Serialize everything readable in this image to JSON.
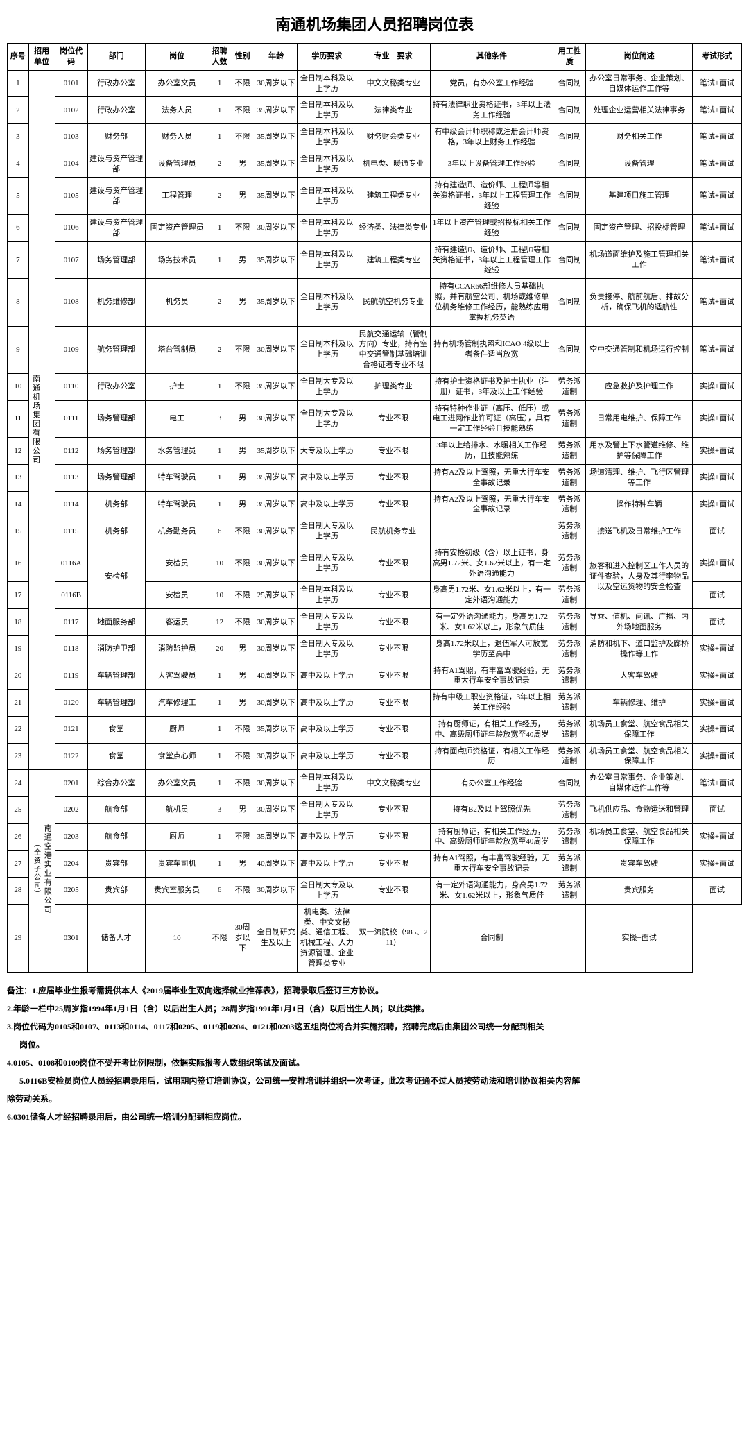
{
  "title": "南通机场集团人员招聘岗位表",
  "headers": {
    "seq": "序号",
    "unit": "招用单位",
    "code": "岗位代码",
    "dept": "部门",
    "pos": "岗位",
    "num": "招聘人数",
    "sex": "性别",
    "age": "年龄",
    "edu": "学历要求",
    "major": "专业　要求",
    "other": "其他条件",
    "emp": "用工性质",
    "desc": "岗位简述",
    "exam": "考试形式"
  },
  "units": [
    {
      "label": "南通机场集团有限公司",
      "paren": ""
    },
    {
      "label": "南通空港实业有限公司",
      "paren": "（全资子公司）"
    }
  ],
  "rows": [
    {
      "u": 0,
      "seq": "1",
      "code": "0101",
      "dept": "行政办公室",
      "pos": "办公室文员",
      "num": "1",
      "sex": "不限",
      "age": "30周岁以下",
      "edu": "全日制本科及以上学历",
      "major": "中文文秘类专业",
      "other": "党员，有办公室工作经验",
      "emp": "合同制",
      "desc": "办公室日常事务、企业策划、自媒体运作工作等",
      "exam": "笔试+面试"
    },
    {
      "u": 0,
      "seq": "2",
      "code": "0102",
      "dept": "行政办公室",
      "pos": "法务人员",
      "num": "1",
      "sex": "不限",
      "age": "35周岁以下",
      "edu": "全日制本科及以上学历",
      "major": "法律类专业",
      "other": "持有法律职业资格证书，3年以上法务工作经验",
      "emp": "合同制",
      "desc": "处理企业运营相关法律事务",
      "exam": "笔试+面试"
    },
    {
      "u": 0,
      "seq": "3",
      "code": "0103",
      "dept": "财务部",
      "pos": "财务人员",
      "num": "1",
      "sex": "不限",
      "age": "35周岁以下",
      "edu": "全日制本科及以上学历",
      "major": "财务财会类专业",
      "other": "有中级会计师职称或注册会计师资格，3年以上财务工作经验",
      "emp": "合同制",
      "desc": "财务相关工作",
      "exam": "笔试+面试"
    },
    {
      "u": 0,
      "seq": "4",
      "code": "0104",
      "dept": "建设与资产管理部",
      "pos": "设备管理员",
      "num": "2",
      "sex": "男",
      "age": "35周岁以下",
      "edu": "全日制本科及以上学历",
      "major": "机电类、暖通专业",
      "other": "3年以上设备管理工作经验",
      "emp": "合同制",
      "desc": "设备管理",
      "exam": "笔试+面试"
    },
    {
      "u": 0,
      "seq": "5",
      "code": "0105",
      "dept": "建设与资产管理部",
      "pos": "工程管理",
      "num": "2",
      "sex": "男",
      "age": "35周岁以下",
      "edu": "全日制本科及以上学历",
      "major": "建筑工程类专业",
      "other": "持有建造师、造价师、工程师等相关资格证书，3年以上工程管理工作经验",
      "emp": "合同制",
      "desc": "基建项目施工管理",
      "exam": "笔试+面试"
    },
    {
      "u": 0,
      "seq": "6",
      "code": "0106",
      "dept": "建设与资产管理部",
      "pos": "固定资产管理员",
      "num": "1",
      "sex": "不限",
      "age": "30周岁以下",
      "edu": "全日制本科及以上学历",
      "major": "经济类、法律类专业",
      "other": "1年以上资产管理或招投标相关工作经验",
      "emp": "合同制",
      "desc": "固定资产管理、招投标管理",
      "exam": "笔试+面试"
    },
    {
      "u": 0,
      "seq": "7",
      "code": "0107",
      "dept": "场务管理部",
      "pos": "场务技术员",
      "num": "1",
      "sex": "男",
      "age": "35周岁以下",
      "edu": "全日制本科及以上学历",
      "major": "建筑工程类专业",
      "other": "持有建造师、造价师、工程师等相关资格证书，3年以上工程管理工作经验",
      "emp": "合同制",
      "desc": "机场道面维护及施工管理相关工作",
      "exam": "笔试+面试"
    },
    {
      "u": 0,
      "seq": "8",
      "code": "0108",
      "dept": "机务维修部",
      "pos": "机务员",
      "num": "2",
      "sex": "男",
      "age": "35周岁以下",
      "edu": "全日制本科及以上学历",
      "major": "民航航空机务专业",
      "other": "持有CCAR66部维修人员基础执照，并有航空公司、机场或维修单位机务维修工作经历，能熟练应用掌握机务英语",
      "emp": "合同制",
      "desc": "负责接停、航前航后、排故分析，确保飞机的适航性",
      "exam": "笔试+面试"
    },
    {
      "u": 0,
      "seq": "9",
      "code": "0109",
      "dept": "航务管理部",
      "pos": "塔台管制员",
      "num": "2",
      "sex": "不限",
      "age": "30周岁以下",
      "edu": "全日制本科及以上学历",
      "major": "民航交通运输（管制方向）专业，持有空中交通管制基础培训合格证者专业不限",
      "other": "持有机场管制执照和ICAO 4级以上者条件适当放宽",
      "emp": "合同制",
      "desc": "空中交通管制和机场运行控制",
      "exam": "笔试+面试"
    },
    {
      "u": 0,
      "seq": "10",
      "code": "0110",
      "dept": "行政办公室",
      "pos": "护士",
      "num": "1",
      "sex": "不限",
      "age": "35周岁以下",
      "edu": "全日制大专及以上学历",
      "major": "护理类专业",
      "other": "持有护士资格证书及护士执业（注册）证书，3年及以上工作经验",
      "emp": "劳务派遣制",
      "desc": "应急救护及护理工作",
      "exam": "实操+面试"
    },
    {
      "u": 0,
      "seq": "11",
      "code": "0111",
      "dept": "场务管理部",
      "pos": "电工",
      "num": "3",
      "sex": "男",
      "age": "30周岁以下",
      "edu": "全日制大专及以上学历",
      "major": "专业不限",
      "other": "持有特种作业证（高压、低压）或电工进网作业许可证（高压），具有一定工作经验且技能熟练",
      "emp": "劳务派遣制",
      "desc": "日常用电维护、保障工作",
      "exam": "实操+面试"
    },
    {
      "u": 0,
      "seq": "12",
      "code": "0112",
      "dept": "场务管理部",
      "pos": "水务管理员",
      "num": "1",
      "sex": "男",
      "age": "35周岁以下",
      "edu": "大专及以上学历",
      "major": "专业不限",
      "other": "3年以上给排水、水暖相关工作经历，且技能熟练",
      "emp": "劳务派遣制",
      "desc": "用水及管上下水管道维修、维护等保障工作",
      "exam": "实操+面试"
    },
    {
      "u": 0,
      "seq": "13",
      "code": "0113",
      "dept": "场务管理部",
      "pos": "特车驾驶员",
      "num": "1",
      "sex": "男",
      "age": "35周岁以下",
      "edu": "高中及以上学历",
      "major": "专业不限",
      "other": "持有A2及以上驾照，无重大行车安全事故记录",
      "emp": "劳务派遣制",
      "desc": "场道清理、维护、飞行区管理等工作",
      "exam": "实操+面试"
    },
    {
      "u": 0,
      "seq": "14",
      "code": "0114",
      "dept": "机务部",
      "pos": "特车驾驶员",
      "num": "1",
      "sex": "男",
      "age": "35周岁以下",
      "edu": "高中及以上学历",
      "major": "专业不限",
      "other": "持有A2及以上驾照，无重大行车安全事故记录",
      "emp": "劳务派遣制",
      "desc": "操作特种车辆",
      "exam": "实操+面试"
    },
    {
      "u": 0,
      "seq": "15",
      "code": "0115",
      "dept": "机务部",
      "pos": "机务勤务员",
      "num": "6",
      "sex": "不限",
      "age": "30周岁以下",
      "edu": "全日制大专及以上学历",
      "major": "民航机务专业",
      "other": "",
      "emp": "劳务派遣制",
      "desc": "接送飞机及日常维护工作",
      "exam": "面试"
    },
    {
      "u": 0,
      "seq": "16",
      "code": "0116A",
      "dept": "安检部",
      "deptSpan": 2,
      "pos": "安检员",
      "num": "10",
      "sex": "不限",
      "age": "30周岁以下",
      "edu": "全日制大专及以上学历",
      "major": "专业不限",
      "other": "持有安检初级（含）以上证书，身高男1.72米、女1.62米以上，有一定外语沟通能力",
      "emp": "劳务派遣制",
      "desc": "旅客和进入控制区工作人员的证件查验，人身及其行李物品以及空运货物的安全检查",
      "descSpan": 2,
      "exam": "实操+面试"
    },
    {
      "u": 0,
      "seq": "17",
      "code": "0116B",
      "dept": "",
      "pos": "安检员",
      "num": "10",
      "sex": "不限",
      "age": "25周岁以下",
      "edu": "全日制本科及以上学历",
      "major": "专业不限",
      "other": "身高男1.72米、女1.62米以上，有一定外语沟通能力",
      "emp": "劳务派遣制",
      "desc": "",
      "exam": "面试"
    },
    {
      "u": 0,
      "seq": "18",
      "code": "0117",
      "dept": "地面服务部",
      "pos": "客运员",
      "num": "12",
      "sex": "不限",
      "age": "30周岁以下",
      "edu": "全日制大专及以上学历",
      "major": "专业不限",
      "other": "有一定外语沟通能力，身高男1.72米、女1.62米以上，形象气质佳",
      "emp": "劳务派遣制",
      "desc": "导乘、值机、问讯、广播、内外场地面服务",
      "exam": "面试"
    },
    {
      "u": 0,
      "seq": "19",
      "code": "0118",
      "dept": "消防护卫部",
      "pos": "消防监护员",
      "num": "20",
      "sex": "男",
      "age": "30周岁以下",
      "edu": "全日制大专及以上学历",
      "major": "专业不限",
      "other": "身高1.72米以上，退伍军人可放宽学历至高中",
      "emp": "劳务派遣制",
      "desc": "消防和机下、道口监护及廊桥操作等工作",
      "exam": "实操+面试"
    },
    {
      "u": 0,
      "seq": "20",
      "code": "0119",
      "dept": "车辆管理部",
      "pos": "大客驾驶员",
      "num": "1",
      "sex": "男",
      "age": "40周岁以下",
      "edu": "高中及以上学历",
      "major": "专业不限",
      "other": "持有A1驾照，有丰富驾驶经验，无重大行车安全事故记录",
      "emp": "劳务派遣制",
      "desc": "大客车驾驶",
      "exam": "实操+面试"
    },
    {
      "u": 0,
      "seq": "21",
      "code": "0120",
      "dept": "车辆管理部",
      "pos": "汽车修理工",
      "num": "1",
      "sex": "男",
      "age": "30周岁以下",
      "edu": "高中及以上学历",
      "major": "专业不限",
      "other": "持有中级工职业资格证，3年以上相关工作经验",
      "emp": "劳务派遣制",
      "desc": "车辆修理、维护",
      "exam": "实操+面试"
    },
    {
      "u": 0,
      "seq": "22",
      "code": "0121",
      "dept": "食堂",
      "pos": "厨师",
      "num": "1",
      "sex": "不限",
      "age": "35周岁以下",
      "edu": "高中及以上学历",
      "major": "专业不限",
      "other": "持有厨师证，有相关工作经历，中、高级厨师证年龄放宽至40周岁",
      "emp": "劳务派遣制",
      "desc": "机场员工食堂、航空食品相关保障工作",
      "exam": "实操+面试"
    },
    {
      "u": 0,
      "seq": "23",
      "code": "0122",
      "dept": "食堂",
      "pos": "食堂点心师",
      "num": "1",
      "sex": "不限",
      "age": "30周岁以下",
      "edu": "高中及以上学历",
      "major": "专业不限",
      "other": "持有面点师资格证，有相关工作经历",
      "emp": "劳务派遣制",
      "desc": "机场员工食堂、航空食品相关保障工作",
      "exam": "实操+面试"
    },
    {
      "u": 1,
      "seq": "24",
      "code": "0201",
      "dept": "综合办公室",
      "pos": "办公室文员",
      "num": "1",
      "sex": "不限",
      "age": "30周岁以下",
      "edu": "全日制本科及以上学历",
      "major": "中文文秘类专业",
      "other": "有办公室工作经验",
      "emp": "合同制",
      "desc": "办公室日常事务、企业策划、自媒体运作工作等",
      "exam": "笔试+面试"
    },
    {
      "u": 1,
      "seq": "25",
      "code": "0202",
      "dept": "航食部",
      "pos": "航机员",
      "num": "3",
      "sex": "男",
      "age": "30周岁以下",
      "edu": "全日制大专及以上学历",
      "major": "专业不限",
      "other": "持有B2及以上驾照优先",
      "emp": "劳务派遣制",
      "desc": "飞机供应品、食物运送和管理",
      "exam": "面试"
    },
    {
      "u": 1,
      "seq": "26",
      "code": "0203",
      "dept": "航食部",
      "pos": "厨师",
      "num": "1",
      "sex": "不限",
      "age": "35周岁以下",
      "edu": "高中及以上学历",
      "major": "专业不限",
      "other": "持有厨师证，有相关工作经历，中、高级厨师证年龄放宽至40周岁",
      "emp": "劳务派遣制",
      "desc": "机场员工食堂、航空食品相关保障工作",
      "exam": "实操+面试"
    },
    {
      "u": 1,
      "seq": "27",
      "code": "0204",
      "dept": "贵宾部",
      "pos": "贵宾车司机",
      "num": "1",
      "sex": "男",
      "age": "40周岁以下",
      "edu": "高中及以上学历",
      "major": "专业不限",
      "other": "持有A1驾照，有丰富驾驶经验，无重大行车安全事故记录",
      "emp": "劳务派遣制",
      "desc": "贵宾车驾驶",
      "exam": "实操+面试"
    },
    {
      "u": 1,
      "seq": "28",
      "code": "0205",
      "dept": "贵宾部",
      "pos": "贵宾室服务员",
      "num": "6",
      "sex": "不限",
      "age": "30周岁以下",
      "edu": "全日制大专及以上学历",
      "major": "专业不限",
      "other": "有一定外语沟通能力，身高男1.72米、女1.62米以上，形象气质佳",
      "emp": "劳务派遣制",
      "desc": "贵宾服务",
      "exam": "面试"
    },
    {
      "u": 1,
      "seq": "29",
      "code": "0301",
      "dept": "",
      "pos": "储备人才",
      "num": "10",
      "sex": "不限",
      "age": "30周岁以下",
      "edu": "全日制研究生及以上",
      "major": "机电类、法律类、中文文秘类、通信工程、机械工程、人力资源管理、企业管理类专业",
      "other": "双一流院校（985、211）",
      "emp": "合同制",
      "desc": "",
      "exam": "实操+面试"
    }
  ],
  "notes": [
    "备注：1.应届毕业生报考需提供本人《2019届毕业生双向选择就业推荐表》，招聘录取后签订三方协议。",
    "2.年龄一栏中25周岁指1994年1月1日（含）以后出生人员；28周岁指1991年1月1日（含）以后出生人员；以此类推。",
    "3.岗位代码为0105和0107、0113和0114、0117和0205、0119和0204、0121和0203这五组岗位将合并实施招聘，招聘完成后由集团公司统一分配到相关",
    "岗位。",
    "4.0105、0108和0109岗位不受开考比例限制，依据实际报考人数组织笔试及面试。",
    "5.0116B安检员岗位人员经招聘录用后，试用期内签订培训协议，公司统一安排培训并组织一次考证，此次考证通不过人员按劳动法和培训协议相关内容解",
    "除劳动关系。",
    "6.0301储备人才经招聘录用后，由公司统一培训分配到相应岗位。"
  ],
  "notes_sub_idx": [
    3,
    5
  ]
}
